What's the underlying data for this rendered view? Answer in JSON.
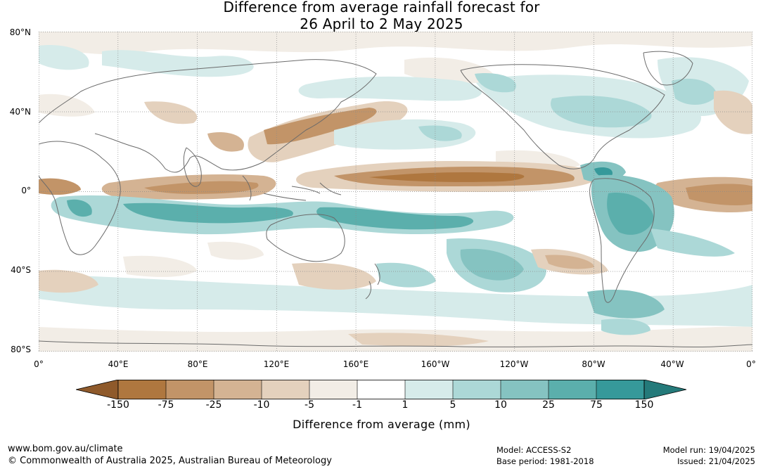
{
  "title": {
    "line1": "Difference from average rainfall forecast for",
    "line2": "26 April to 2 May 2025"
  },
  "map": {
    "lat_labels": [
      "80°N",
      "40°N",
      "0°",
      "40°S",
      "80°S"
    ],
    "lon_labels": [
      "0°",
      "40°E",
      "80°E",
      "120°E",
      "160°E",
      "160°W",
      "120°W",
      "80°W",
      "40°W",
      "0°"
    ],
    "grid": "dotted"
  },
  "colorbar": {
    "ticks": [
      "-150",
      "-75",
      "-25",
      "-10",
      "-5",
      "-1",
      "1",
      "5",
      "10",
      "25",
      "75",
      "150"
    ],
    "colors": [
      "#8f5a2b",
      "#af773f",
      "#c29468",
      "#d4b393",
      "#e4d1bd",
      "#f2ede6",
      "#ffffff",
      "#d6ebea",
      "#acd8d7",
      "#85c3c1",
      "#5bafac",
      "#36999a",
      "#247a7a"
    ],
    "label": "Difference from average (mm)"
  },
  "footer": {
    "url": "www.bom.gov.au/climate",
    "copyright": "© Commonwealth of Australia 2025, Australian Bureau of Meteorology",
    "model": "Model: ACCESS-S2",
    "base_period": "Base period: 1981-2018",
    "model_run": "Model run: 19/04/2025",
    "issued": "Issued: 21/04/2025"
  }
}
